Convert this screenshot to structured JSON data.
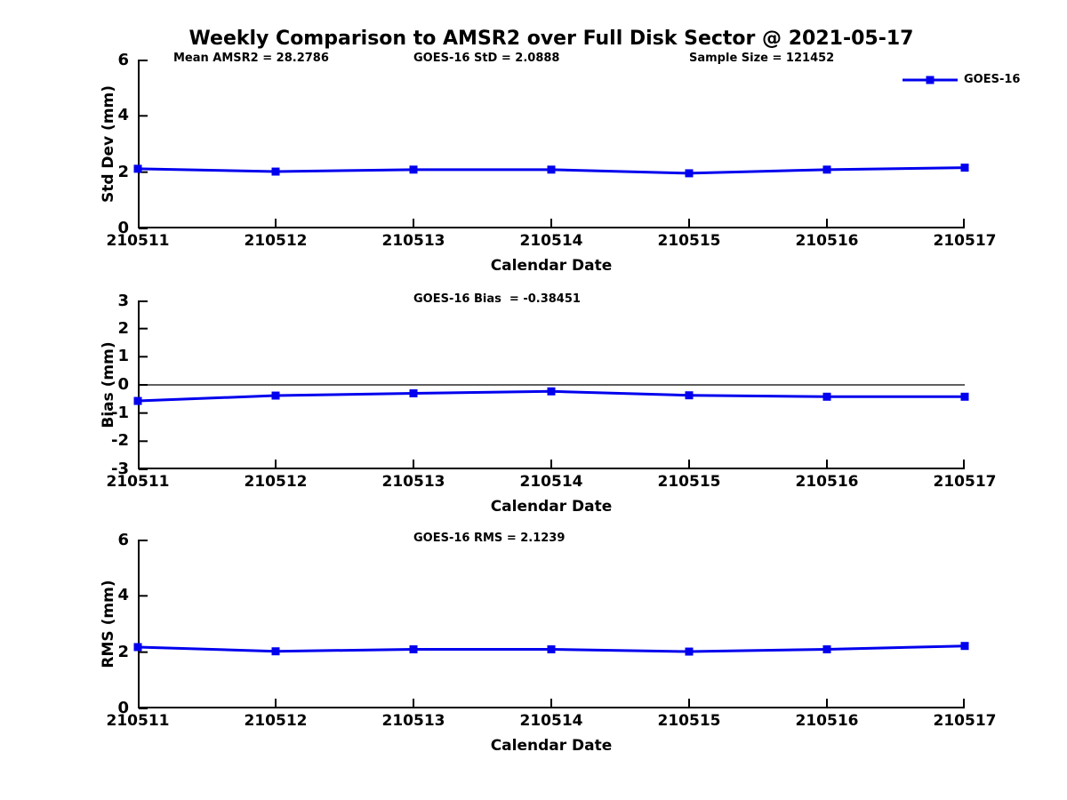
{
  "title": "Weekly Comparison to AMSR2 over Full Disk Sector @ 2021-05-17",
  "legend": {
    "label": "GOES-16"
  },
  "colors": {
    "line": "#0000ee",
    "axis": "#000000",
    "background": "#ffffff"
  },
  "chart_data": [
    {
      "type": "line",
      "name": "std-dev",
      "ylabel": "Std Dev (mm)",
      "xlabel": "Calendar Date",
      "ylim": [
        0,
        6
      ],
      "yticks": [
        0,
        2,
        4,
        6
      ],
      "categories": [
        "210511",
        "210512",
        "210513",
        "210514",
        "210515",
        "210516",
        "210517"
      ],
      "series": [
        {
          "name": "GOES-16",
          "values": [
            2.12,
            2.02,
            2.09,
            2.09,
            1.96,
            2.09,
            2.16
          ]
        }
      ],
      "annotations": [
        {
          "text": "Mean AMSR2 = 28.2786",
          "x": 40
        },
        {
          "text": "GOES-16 StD = 2.0888",
          "x": 310
        },
        {
          "text": "Sample Size = 121452",
          "x": 620
        }
      ],
      "zero_line": false,
      "grid": false,
      "legend_position": "top-right"
    },
    {
      "type": "line",
      "name": "bias",
      "ylabel": "Bias (mm)",
      "xlabel": "Calendar Date",
      "ylim": [
        -3,
        3
      ],
      "yticks": [
        3,
        2,
        1,
        0,
        -1,
        -2,
        -3
      ],
      "categories": [
        "210511",
        "210512",
        "210513",
        "210514",
        "210515",
        "210516",
        "210517"
      ],
      "series": [
        {
          "name": "GOES-16",
          "values": [
            -0.57,
            -0.38,
            -0.3,
            -0.23,
            -0.37,
            -0.42,
            -0.42
          ]
        }
      ],
      "annotations": [
        {
          "text": "GOES-16 Bias  = -0.38451",
          "x": 310
        }
      ],
      "zero_line": true,
      "grid": false
    },
    {
      "type": "line",
      "name": "rms",
      "ylabel": "RMS (mm)",
      "xlabel": "Calendar Date",
      "ylim": [
        0,
        6
      ],
      "yticks": [
        0,
        2,
        4,
        6
      ],
      "categories": [
        "210511",
        "210512",
        "210513",
        "210514",
        "210515",
        "210516",
        "210517"
      ],
      "series": [
        {
          "name": "GOES-16",
          "values": [
            2.18,
            2.03,
            2.1,
            2.1,
            2.02,
            2.1,
            2.22
          ]
        }
      ],
      "annotations": [
        {
          "text": "GOES-16 RMS = 2.1239",
          "x": 310
        }
      ],
      "zero_line": false,
      "grid": false
    }
  ]
}
